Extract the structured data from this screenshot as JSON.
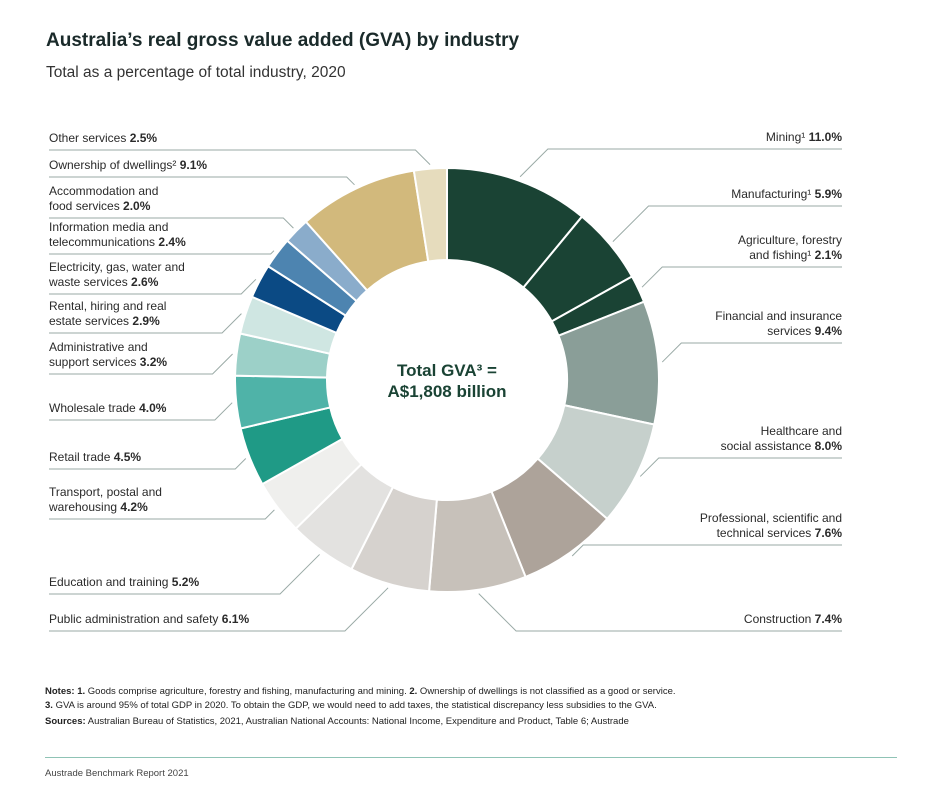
{
  "title": "Australia’s real gross value added (GVA) by industry",
  "subtitle": "Total as a percentage of total industry, 2020",
  "center_label": {
    "line1": "Total GVA³ =",
    "line2": "A$1,808 billion"
  },
  "chart_data": {
    "type": "pie",
    "variant": "donut",
    "title": "Australia’s real gross value added (GVA) by industry",
    "subtitle": "Total as a percentage of total industry, 2020",
    "unit": "%",
    "order": "clockwise from top",
    "slices": [
      {
        "label": "Mining¹",
        "value": 11.0,
        "display": "11.0%",
        "color": "#1a4334",
        "side": "right"
      },
      {
        "label": "Manufacturing¹",
        "value": 5.9,
        "display": "5.9%",
        "color": "#1a4334",
        "side": "right"
      },
      {
        "label": "Agriculture, forestry|and fishing¹",
        "value": 2.1,
        "display": "2.1%",
        "color": "#1a4334",
        "side": "right"
      },
      {
        "label": "Financial and insurance|services",
        "value": 9.4,
        "display": "9.4%",
        "color": "#8a9e98",
        "side": "right"
      },
      {
        "label": "Healthcare and|social assistance",
        "value": 8.0,
        "display": "8.0%",
        "color": "#c6d0cc",
        "side": "right"
      },
      {
        "label": "Professional, scientific and|technical services",
        "value": 7.6,
        "display": "7.6%",
        "color": "#ada39a",
        "side": "right"
      },
      {
        "label": "Construction",
        "value": 7.4,
        "display": "7.4%",
        "color": "#c7c1ba",
        "side": "right"
      },
      {
        "label": "Public administration and safety",
        "value": 6.1,
        "display": "6.1%",
        "color": "#d6d2ce",
        "side": "left"
      },
      {
        "label": "Education and training",
        "value": 5.2,
        "display": "5.2%",
        "color": "#e3e2e0",
        "side": "left"
      },
      {
        "label": "Transport, postal and|warehousing",
        "value": 4.2,
        "display": "4.2%",
        "color": "#efefed",
        "side": "left"
      },
      {
        "label": "Retail trade",
        "value": 4.5,
        "display": "4.5%",
        "color": "#1f9a86",
        "side": "left"
      },
      {
        "label": "Wholesale trade",
        "value": 4.0,
        "display": "4.0%",
        "color": "#4fb3a8",
        "side": "left"
      },
      {
        "label": "Administrative and|support services",
        "value": 3.2,
        "display": "3.2%",
        "color": "#9cd0c8",
        "side": "left"
      },
      {
        "label": "Rental, hiring and real|estate services",
        "value": 2.9,
        "display": "2.9%",
        "color": "#cfe6e2",
        "side": "left"
      },
      {
        "label": "Electricity, gas, water and|waste services",
        "value": 2.6,
        "display": "2.6%",
        "color": "#0b4a84",
        "side": "left"
      },
      {
        "label": "Information media and|telecommunications",
        "value": 2.4,
        "display": "2.4%",
        "color": "#4d84b0",
        "side": "left"
      },
      {
        "label": "Accommodation and|food services",
        "value": 2.0,
        "display": "2.0%",
        "color": "#8aaccb",
        "side": "left"
      },
      {
        "label": "Ownership of dwellings²",
        "value": 9.1,
        "display": "9.1%",
        "color": "#d2b97c",
        "side": "left"
      },
      {
        "label": "Other services",
        "value": 2.5,
        "display": "2.5%",
        "color": "#e6dcbd",
        "side": "left"
      }
    ]
  },
  "notes": {
    "notes_label": "Notes:",
    "n1_label": "1.",
    "n1": " Goods comprise agriculture, forestry and fishing, manufacturing and mining. ",
    "n2_label": "2.",
    "n2": " Ownership of dwellings is not classified as a good or service.",
    "n3_label": "3.",
    "n3": " GVA is around 95% of total GDP in 2020. To obtain the GDP, we would need to add taxes, the statistical discrepancy less subsidies to the GVA.",
    "sources_label": "Sources:",
    "sources": " Australian Bureau of Statistics, 2021, Australian National Accounts: National Income, Expenditure and Product, Table 6; Austrade"
  },
  "footer": "Austrade Benchmark Report 2021"
}
